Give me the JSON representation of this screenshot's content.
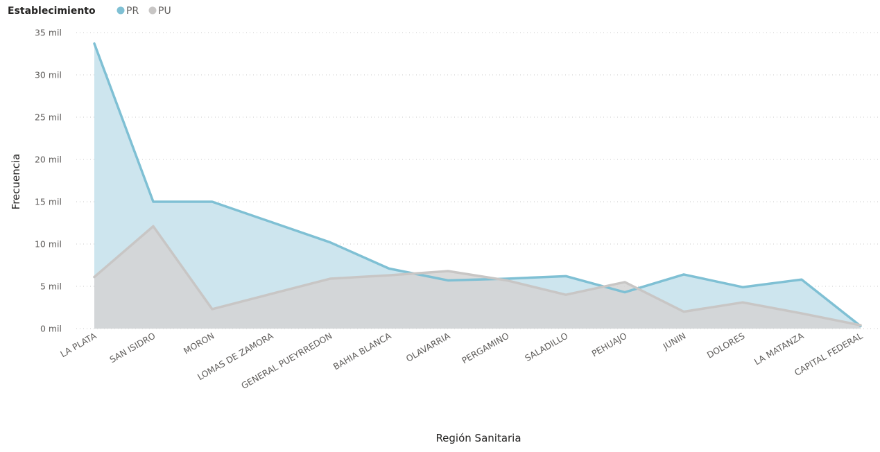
{
  "colors": {
    "PR": "#7fc0d4",
    "PU": "#c8c6c5",
    "PR_area": "#cde5ee",
    "PU_area": "#d3d3d3"
  },
  "chart_data": {
    "type": "area",
    "legend_placement": "top-left",
    "legend_title": "Establecimiento",
    "categories": [
      "LA PLATA",
      "SAN ISIDRO",
      "MORON",
      "LOMAS DE ZAMORA",
      "GENERAL PUEYRREDON",
      "BAHIA BLANCA",
      "OLAVARRIA",
      "PERGAMINO",
      "SALADILLO",
      "PEHUAJO",
      "JUNIN",
      "DOLORES",
      "LA MATANZA",
      "CAPITAL FEDERAL"
    ],
    "series": [
      {
        "name": "PR",
        "values": [
          33700,
          15000,
          15000,
          12600,
          10200,
          7100,
          5700,
          5900,
          6200,
          4300,
          6400,
          4900,
          5800,
          300
        ]
      },
      {
        "name": "PU",
        "values": [
          6100,
          12100,
          2300,
          4100,
          5900,
          6300,
          6800,
          5700,
          4000,
          5500,
          2000,
          3100,
          1800,
          400
        ]
      }
    ],
    "xlabel": "Región Sanitaria",
    "ylabel": "Frecuencia",
    "ylim": [
      0,
      35000
    ],
    "yticks": [
      {
        "value": 0,
        "label": "0 mil"
      },
      {
        "value": 5000,
        "label": "5 mil"
      },
      {
        "value": 10000,
        "label": "10 mil"
      },
      {
        "value": 15000,
        "label": "15 mil"
      },
      {
        "value": 20000,
        "label": "20 mil"
      },
      {
        "value": 25000,
        "label": "25 mil"
      },
      {
        "value": 30000,
        "label": "30 mil"
      },
      {
        "value": 35000,
        "label": "35 mil"
      }
    ],
    "grid": true
  }
}
